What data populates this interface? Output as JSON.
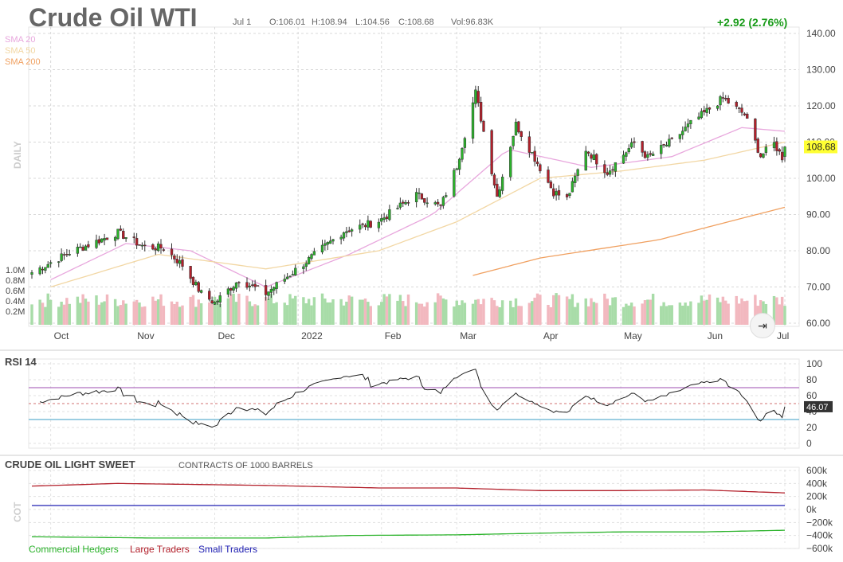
{
  "header": {
    "title": "Crude Oil WTI",
    "date": "Jul 1",
    "open": "O:106.01",
    "high": "H:108.94",
    "low": "L:104.56",
    "close": "C:108.68",
    "volume": "Vol:96.83K",
    "change": "+2.92 (2.76%)"
  },
  "legend": {
    "sma20": "SMA 20",
    "sma50": "SMA 50",
    "sma200": "SMA 200"
  },
  "colors": {
    "sma20": "#e8a7dd",
    "sma50": "#f2d7a4",
    "sma200": "#f0a060",
    "up": "#2bb32b",
    "down": "#b3202b",
    "price_badge": "#ffff33"
  },
  "side_labels": {
    "daily": "DAILY",
    "cot": "COT"
  },
  "rsi": {
    "title": "RSI 14",
    "last_label": "46.07"
  },
  "cot": {
    "title": "CRUDE OIL LIGHT SWEET",
    "subtitle": "CONTRACTS OF 1000 BARRELS",
    "legend": [
      "Commercial Hedgers",
      "Large Traders",
      "Small Traders"
    ]
  },
  "forward_button": "⇥",
  "chart_data": [
    {
      "type": "candlestick",
      "title": "Crude Oil WTI",
      "period": "Daily",
      "x_tick_labels": [
        "Oct",
        "Nov",
        "Dec",
        "2022",
        "Feb",
        "Mar",
        "Apr",
        "May",
        "Jun",
        "Jul"
      ],
      "y_ticks": [
        "140.00",
        "130.00",
        "120.00",
        "110.00",
        "100.00",
        "90.00",
        "80.00",
        "70.00",
        "60.00"
      ],
      "ylim": [
        60,
        140
      ],
      "last_price_label": "108.68",
      "close_anchors": [
        {
          "date": "2021-09-24",
          "close": 74
        },
        {
          "date": "2021-10-08",
          "close": 79.5
        },
        {
          "date": "2021-10-26",
          "close": 85
        },
        {
          "date": "2021-11-05",
          "close": 81
        },
        {
          "date": "2021-11-12",
          "close": 80.8
        },
        {
          "date": "2021-11-19",
          "close": 76
        },
        {
          "date": "2021-11-26",
          "close": 68.2
        },
        {
          "date": "2021-12-01",
          "close": 65.6
        },
        {
          "date": "2021-12-10",
          "close": 72
        },
        {
          "date": "2021-12-20",
          "close": 68.2
        },
        {
          "date": "2022-01-04",
          "close": 77
        },
        {
          "date": "2022-01-18",
          "close": 85.4
        },
        {
          "date": "2022-01-31",
          "close": 88.2
        },
        {
          "date": "2022-02-14",
          "close": 95.5
        },
        {
          "date": "2022-02-23",
          "close": 92.1
        },
        {
          "date": "2022-03-01",
          "close": 103.4
        },
        {
          "date": "2022-03-08",
          "close": 123.7
        },
        {
          "date": "2022-03-16",
          "close": 95
        },
        {
          "date": "2022-03-23",
          "close": 114.9
        },
        {
          "date": "2022-04-06",
          "close": 96.2
        },
        {
          "date": "2022-04-11",
          "close": 94.3
        },
        {
          "date": "2022-04-18",
          "close": 108
        },
        {
          "date": "2022-04-26",
          "close": 101.7
        },
        {
          "date": "2022-05-06",
          "close": 109.8
        },
        {
          "date": "2022-05-11",
          "close": 105.7
        },
        {
          "date": "2022-05-20",
          "close": 110.3
        },
        {
          "date": "2022-05-27",
          "close": 115.1
        },
        {
          "date": "2022-06-08",
          "close": 122.1
        },
        {
          "date": "2022-06-16",
          "close": 117.6
        },
        {
          "date": "2022-06-22",
          "close": 106.2
        },
        {
          "date": "2022-06-27",
          "close": 109.6
        },
        {
          "date": "2022-06-30",
          "close": 105.8
        },
        {
          "date": "2022-07-01",
          "close": 108.68,
          "open": 106.01,
          "high": 108.94,
          "low": 104.56,
          "volume": "96.83K"
        }
      ],
      "sma": [
        {
          "name": "SMA 20",
          "anchors": [
            [
              "2021-10-01",
              72
            ],
            [
              "2021-10-29",
              82
            ],
            [
              "2021-11-22",
              80
            ],
            [
              "2021-12-20",
              70
            ],
            [
              "2022-01-20",
              79
            ],
            [
              "2022-02-20",
              90
            ],
            [
              "2022-03-20",
              108
            ],
            [
              "2022-04-20",
              103
            ],
            [
              "2022-05-20",
              106
            ],
            [
              "2022-06-15",
              114
            ],
            [
              "2022-07-01",
              113
            ]
          ]
        },
        {
          "name": "SMA 50",
          "anchors": [
            [
              "2021-10-01",
              70
            ],
            [
              "2021-11-10",
              79
            ],
            [
              "2021-12-20",
              75
            ],
            [
              "2022-01-31",
              80
            ],
            [
              "2022-03-01",
              88
            ],
            [
              "2022-04-01",
              100
            ],
            [
              "2022-05-01",
              102
            ],
            [
              "2022-06-01",
              105
            ],
            [
              "2022-07-01",
              110
            ]
          ]
        },
        {
          "name": "SMA 200",
          "anchors": [
            [
              "2022-03-06",
              73
            ],
            [
              "2022-04-01",
              78
            ],
            [
              "2022-05-15",
              83
            ],
            [
              "2022-06-10",
              88
            ],
            [
              "2022-07-01",
              92
            ]
          ]
        }
      ],
      "volume_ticks": [
        "1.0M",
        "0.8M",
        "0.6M",
        "0.4M",
        "0.2M"
      ]
    },
    {
      "type": "line",
      "title": "RSI 14",
      "y_ticks": [
        "100",
        "80",
        "60",
        "40",
        "20",
        "0"
      ],
      "ylim": [
        0,
        100
      ],
      "levels": [
        70,
        50,
        30
      ],
      "last_value": 46.07
    },
    {
      "type": "line",
      "title": "CRUDE OIL LIGHT SWEET",
      "subtitle": "CONTRACTS OF 1000 BARRELS",
      "y_ticks": [
        "600k",
        "400k",
        "200k",
        "0k",
        "−200k",
        "−400k",
        "−600k"
      ],
      "ylim": [
        -600000,
        600000
      ],
      "series": [
        {
          "name": "Commercial Hedgers",
          "color": "#2bb32b",
          "anchors": [
            [
              "2021-09-24",
              -420000
            ],
            [
              "2021-11-10",
              -440000
            ],
            [
              "2021-12-20",
              -440000
            ],
            [
              "2022-01-20",
              -400000
            ],
            [
              "2022-03-01",
              -390000
            ],
            [
              "2022-04-01",
              -365000
            ],
            [
              "2022-05-01",
              -345000
            ],
            [
              "2022-06-01",
              -345000
            ],
            [
              "2022-07-01",
              -320000
            ]
          ]
        },
        {
          "name": "Large Traders",
          "color": "#b3202b",
          "anchors": [
            [
              "2021-09-24",
              360000
            ],
            [
              "2021-10-26",
              400000
            ],
            [
              "2021-12-20",
              370000
            ],
            [
              "2022-02-01",
              330000
            ],
            [
              "2022-03-01",
              330000
            ],
            [
              "2022-04-01",
              290000
            ],
            [
              "2022-05-01",
              290000
            ],
            [
              "2022-06-01",
              300000
            ],
            [
              "2022-07-01",
              255000
            ]
          ]
        },
        {
          "name": "Small Traders",
          "color": "#2020b3",
          "anchors": [
            [
              "2021-09-24",
              60000
            ],
            [
              "2022-07-01",
              60000
            ]
          ]
        }
      ]
    }
  ]
}
